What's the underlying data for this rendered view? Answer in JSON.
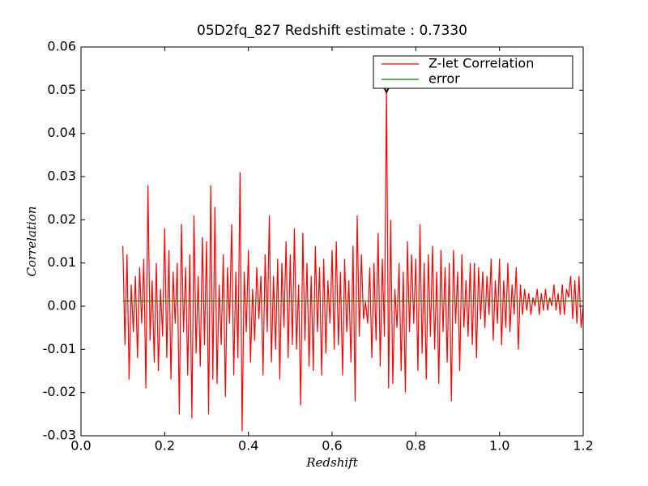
{
  "chart_data": {
    "type": "line",
    "title": "05D2fq_827 Redshift estimate : 0.7330",
    "xlabel": "Redshift",
    "ylabel": "Correlation",
    "xlim": [
      0,
      1.2
    ],
    "ylim": [
      -0.03,
      0.06
    ],
    "xticks": [
      {
        "value": 0,
        "label": "0.0"
      },
      0.2,
      0.4,
      0.6,
      0.8,
      {
        "value": 1,
        "label": "1.0"
      },
      1.2
    ],
    "yticks": [
      -0.03,
      -0.02,
      -0.01,
      {
        "value": 0,
        "label": "0.00"
      },
      0.01,
      0.02,
      0.03,
      0.04,
      0.05,
      0.06
    ],
    "legend": "upper right",
    "marker": {
      "x": 0.73,
      "y": 0.0505,
      "color": "#000000"
    },
    "series": [
      {
        "name": "Z-let Correlation",
        "color": "#ff0000",
        "x": [
          0.1,
          0.105,
          0.11,
          0.115,
          0.12,
          0.125,
          0.13,
          0.135,
          0.14,
          0.145,
          0.15,
          0.155,
          0.16,
          0.165,
          0.17,
          0.175,
          0.18,
          0.185,
          0.19,
          0.195,
          0.2,
          0.205,
          0.21,
          0.215,
          0.22,
          0.225,
          0.23,
          0.235,
          0.24,
          0.245,
          0.25,
          0.255,
          0.26,
          0.265,
          0.27,
          0.275,
          0.28,
          0.285,
          0.29,
          0.295,
          0.3,
          0.305,
          0.31,
          0.315,
          0.32,
          0.325,
          0.33,
          0.335,
          0.34,
          0.345,
          0.35,
          0.355,
          0.36,
          0.365,
          0.37,
          0.375,
          0.38,
          0.385,
          0.39,
          0.395,
          0.4,
          0.405,
          0.41,
          0.415,
          0.42,
          0.425,
          0.43,
          0.435,
          0.44,
          0.445,
          0.45,
          0.455,
          0.46,
          0.465,
          0.47,
          0.475,
          0.48,
          0.485,
          0.49,
          0.495,
          0.5,
          0.505,
          0.51,
          0.515,
          0.52,
          0.525,
          0.53,
          0.535,
          0.54,
          0.545,
          0.55,
          0.555,
          0.56,
          0.565,
          0.57,
          0.575,
          0.58,
          0.585,
          0.59,
          0.595,
          0.6,
          0.605,
          0.61,
          0.615,
          0.62,
          0.625,
          0.63,
          0.635,
          0.64,
          0.645,
          0.65,
          0.655,
          0.66,
          0.665,
          0.67,
          0.675,
          0.68,
          0.685,
          0.69,
          0.695,
          0.7,
          0.705,
          0.71,
          0.715,
          0.72,
          0.725,
          0.73,
          0.735,
          0.74,
          0.745,
          0.75,
          0.755,
          0.76,
          0.765,
          0.77,
          0.775,
          0.78,
          0.785,
          0.79,
          0.795,
          0.8,
          0.805,
          0.81,
          0.815,
          0.82,
          0.825,
          0.83,
          0.835,
          0.84,
          0.845,
          0.85,
          0.855,
          0.86,
          0.865,
          0.87,
          0.875,
          0.88,
          0.885,
          0.89,
          0.895,
          0.9,
          0.905,
          0.91,
          0.915,
          0.92,
          0.925,
          0.93,
          0.935,
          0.94,
          0.945,
          0.95,
          0.955,
          0.96,
          0.965,
          0.97,
          0.975,
          0.98,
          0.985,
          0.99,
          0.995,
          1.0,
          1.005,
          1.01,
          1.015,
          1.02,
          1.025,
          1.03,
          1.035,
          1.04,
          1.045,
          1.05,
          1.055,
          1.06,
          1.065,
          1.07,
          1.075,
          1.08,
          1.085,
          1.09,
          1.095,
          1.1,
          1.105,
          1.11,
          1.115,
          1.12,
          1.125,
          1.13,
          1.135,
          1.14,
          1.145,
          1.15,
          1.155,
          1.16,
          1.165,
          1.17,
          1.175,
          1.18,
          1.185,
          1.19,
          1.195,
          1.2
        ],
        "values": [
          0.014,
          -0.009,
          0.012,
          -0.017,
          0.005,
          -0.006,
          0.007,
          -0.012,
          0.009,
          -0.004,
          0.011,
          -0.019,
          0.028,
          -0.008,
          0.006,
          -0.013,
          0.01,
          -0.015,
          0.004,
          -0.007,
          0.018,
          -0.012,
          0.013,
          -0.017,
          0.008,
          -0.004,
          0.01,
          -0.025,
          0.019,
          -0.006,
          0.009,
          -0.016,
          0.012,
          -0.026,
          0.021,
          -0.011,
          0.007,
          -0.014,
          0.016,
          -0.009,
          0.015,
          -0.025,
          0.028,
          -0.017,
          0.023,
          -0.018,
          0.005,
          -0.009,
          0.012,
          -0.021,
          0.009,
          -0.004,
          0.019,
          -0.016,
          0.008,
          -0.012,
          0.031,
          -0.029,
          0.008,
          -0.006,
          0.013,
          -0.013,
          0.004,
          -0.008,
          0.009,
          -0.003,
          0.007,
          -0.016,
          0.012,
          -0.006,
          0.021,
          -0.013,
          0.007,
          -0.01,
          0.011,
          -0.017,
          0.01,
          -0.005,
          0.015,
          -0.012,
          0.012,
          -0.009,
          0.018,
          -0.01,
          0.005,
          -0.023,
          0.017,
          -0.008,
          0.01,
          -0.014,
          0.007,
          -0.015,
          0.014,
          -0.006,
          0.009,
          -0.016,
          0.011,
          -0.011,
          0.006,
          -0.004,
          0.013,
          -0.01,
          0.015,
          -0.009,
          0.008,
          -0.016,
          0.011,
          -0.006,
          0.006,
          -0.013,
          0.014,
          -0.022,
          0.021,
          -0.007,
          0.012,
          -0.003,
          0.001,
          -0.004,
          0.009,
          -0.012,
          0.01,
          -0.008,
          0.017,
          -0.014,
          0.011,
          -0.007,
          0.05,
          -0.019,
          0.02,
          -0.018,
          0.004,
          -0.005,
          0.01,
          -0.015,
          0.008,
          -0.02,
          0.015,
          -0.006,
          0.012,
          -0.004,
          0.011,
          -0.015,
          0.019,
          -0.011,
          0.01,
          -0.017,
          0.012,
          -0.007,
          0.014,
          -0.01,
          0.008,
          -0.018,
          0.013,
          -0.006,
          0.009,
          -0.013,
          0.01,
          -0.022,
          0.013,
          -0.004,
          0.008,
          -0.015,
          0.012,
          -0.005,
          0.006,
          -0.007,
          0.01,
          -0.009,
          0.01,
          -0.012,
          0.009,
          -0.003,
          0.008,
          -0.005,
          0.007,
          -0.002,
          0.011,
          -0.008,
          0.006,
          -0.004,
          0.011,
          -0.009,
          0.006,
          -0.005,
          0.01,
          -0.006,
          0.005,
          -0.002,
          0.009,
          -0.01,
          0.005,
          -0.002,
          0.004,
          -0.001,
          0.003,
          -0.002,
          0.002,
          0.0,
          0.004,
          -0.002,
          0.003,
          -0.001,
          0.004,
          -0.001,
          0.002,
          0.0,
          0.005,
          -0.001,
          0.003,
          -0.002,
          0.005,
          -0.002,
          0.004,
          0.002,
          0.007,
          -0.003,
          0.006,
          -0.004,
          0.007,
          -0.005,
          0.0
        ]
      },
      {
        "name": "error",
        "color": "#008000",
        "x": [
          0.1,
          1.2
        ],
        "values": [
          0.0012,
          0.0012
        ]
      }
    ]
  }
}
